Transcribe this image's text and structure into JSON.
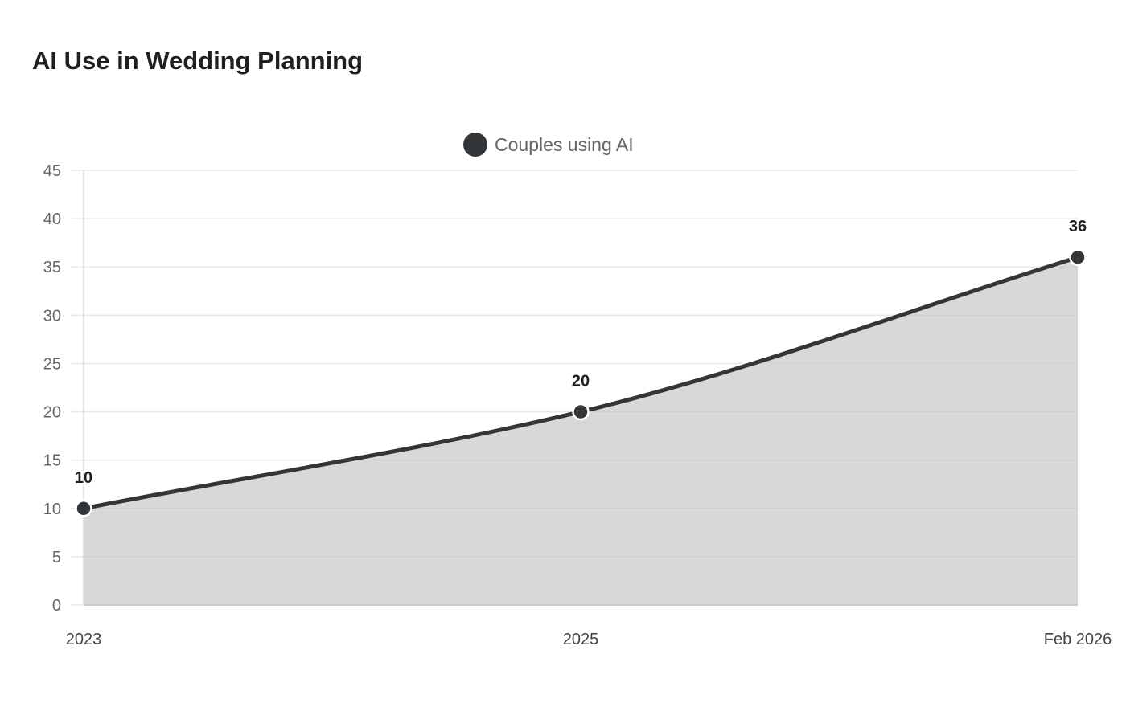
{
  "chart_data": {
    "type": "area",
    "title": "AI Use in Wedding Planning",
    "categories": [
      "2023",
      "2025",
      "Feb 2026"
    ],
    "series": [
      {
        "name": "Couples using AI",
        "values": [
          10,
          20,
          36
        ]
      }
    ],
    "data_labels": [
      "10",
      "20",
      "36"
    ],
    "ylim": [
      0,
      45
    ],
    "yticks": [
      0,
      5,
      10,
      15,
      20,
      25,
      30,
      35,
      40,
      45
    ],
    "xlabel": "",
    "ylabel": "",
    "grid": true,
    "legend_position": "top-center",
    "colors": {
      "line": "#333638",
      "fill": "#d5d6d5",
      "grid": "#e8e8e8"
    }
  }
}
